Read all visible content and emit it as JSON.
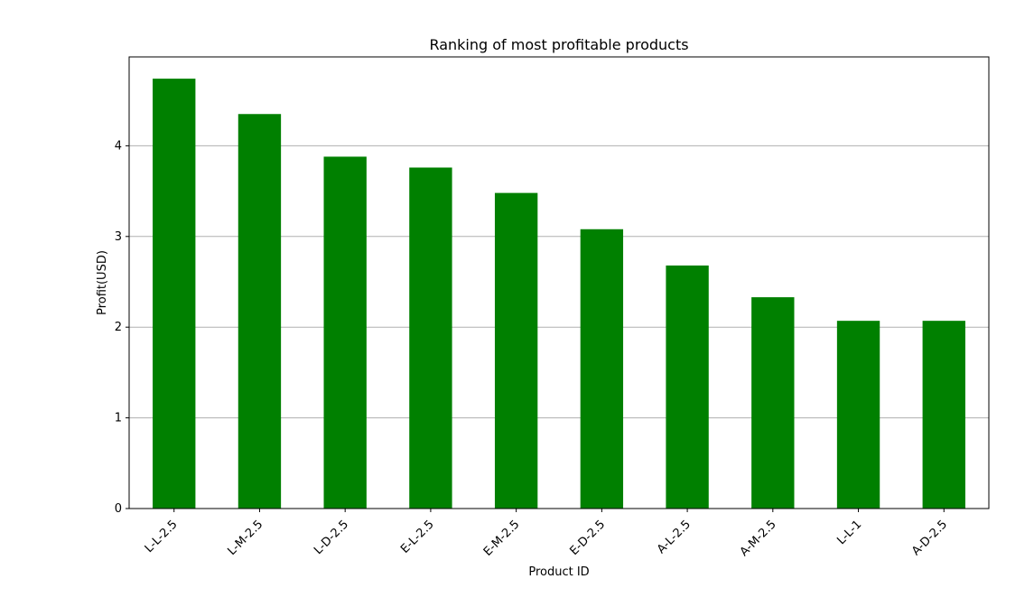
{
  "chart_data": {
    "type": "bar",
    "title": "Ranking of most profitable products",
    "xlabel": "Product ID",
    "ylabel": "Profit(USD)",
    "categories": [
      "L-L-2.5",
      "L-M-2.5",
      "L-D-2.5",
      "E-L-2.5",
      "E-M-2.5",
      "E-D-2.5",
      "A-L-2.5",
      "A-M-2.5",
      "L-L-1",
      "A-D-2.5"
    ],
    "values": [
      4.74,
      4.35,
      3.88,
      3.76,
      3.48,
      3.08,
      2.68,
      2.33,
      2.07,
      2.07
    ],
    "ylim": [
      0,
      4.98
    ],
    "yticks": [
      "0",
      "1",
      "2",
      "3",
      "4"
    ],
    "grid": "horizontal",
    "bar_color": "#008000",
    "gridline_color": "#b0b0b0"
  }
}
